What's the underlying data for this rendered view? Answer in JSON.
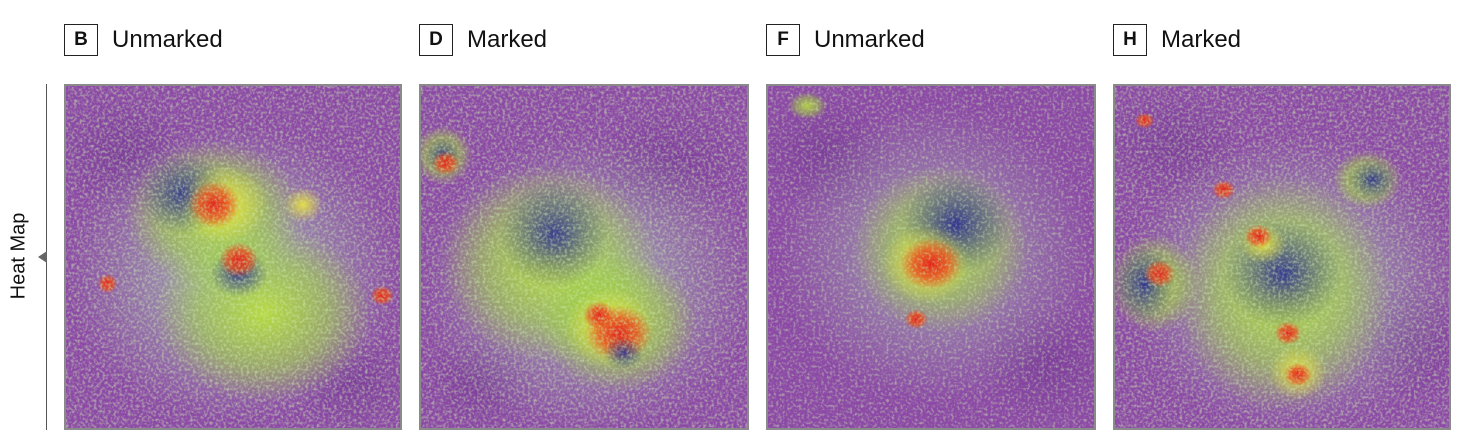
{
  "row_label": "Heat Map",
  "panels": [
    {
      "letter": "B",
      "title": "Unmarked"
    },
    {
      "letter": "D",
      "title": "Marked"
    },
    {
      "letter": "F",
      "title": "Unmarked"
    },
    {
      "letter": "H",
      "title": "Marked"
    }
  ],
  "colors": {
    "background_purple": "#8c4aa6",
    "cool_blue": "#2e2f92",
    "mid_green": "#9fd13a",
    "warm_yellow": "#e9e23a",
    "hot_red": "#e4241b",
    "border_gray": "#8a8a8a"
  }
}
